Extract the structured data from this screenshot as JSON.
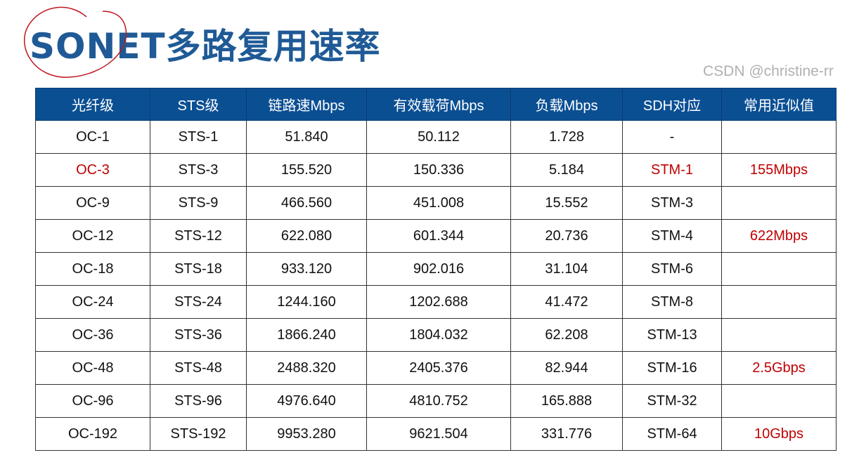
{
  "title": "SONET多路复用速率",
  "headers": [
    "光纤级",
    "STS级",
    "链路速Mbps",
    "有效载荷Mbps",
    "负载Mbps",
    "SDH对应",
    "常用近似值"
  ],
  "rows": [
    {
      "oc": "OC-1",
      "sts": "STS-1",
      "link": "51.840",
      "payload": "50.112",
      "overhead": "1.728",
      "sdh": "-",
      "approx": "",
      "highlight": false
    },
    {
      "oc": "OC-3",
      "sts": "STS-3",
      "link": "155.520",
      "payload": "150.336",
      "overhead": "5.184",
      "sdh": "STM-1",
      "approx": "155Mbps",
      "highlight": true
    },
    {
      "oc": "OC-9",
      "sts": "STS-9",
      "link": "466.560",
      "payload": "451.008",
      "overhead": "15.552",
      "sdh": "STM-3",
      "approx": "",
      "highlight": false
    },
    {
      "oc": "OC-12",
      "sts": "STS-12",
      "link": "622.080",
      "payload": "601.344",
      "overhead": "20.736",
      "sdh": "STM-4",
      "approx": "622Mbps",
      "highlight": false
    },
    {
      "oc": "OC-18",
      "sts": "STS-18",
      "link": "933.120",
      "payload": "902.016",
      "overhead": "31.104",
      "sdh": "STM-6",
      "approx": "",
      "highlight": false
    },
    {
      "oc": "OC-24",
      "sts": "STS-24",
      "link": "1244.160",
      "payload": "1202.688",
      "overhead": "41.472",
      "sdh": "STM-8",
      "approx": "",
      "highlight": false
    },
    {
      "oc": "OC-36",
      "sts": "STS-36",
      "link": "1866.240",
      "payload": "1804.032",
      "overhead": "62.208",
      "sdh": "STM-13",
      "approx": "",
      "highlight": false
    },
    {
      "oc": "OC-48",
      "sts": "STS-48",
      "link": "2488.320",
      "payload": "2405.376",
      "overhead": "82.944",
      "sdh": "STM-16",
      "approx": "2.5Gbps",
      "highlight": false
    },
    {
      "oc": "OC-96",
      "sts": "STS-96",
      "link": "4976.640",
      "payload": "4810.752",
      "overhead": "165.888",
      "sdh": "STM-32",
      "approx": "",
      "highlight": false
    },
    {
      "oc": "OC-192",
      "sts": "STS-192",
      "link": "9953.280",
      "payload": "9621.504",
      "overhead": "331.776",
      "sdh": "STM-64",
      "approx": "10Gbps",
      "highlight": false
    }
  ],
  "watermark": "CSDN @christine-rr",
  "colors": {
    "header_bg": "#0b4f93",
    "title": "#1f5a96",
    "highlight": "#c00000",
    "annotation": "#c0161e"
  }
}
